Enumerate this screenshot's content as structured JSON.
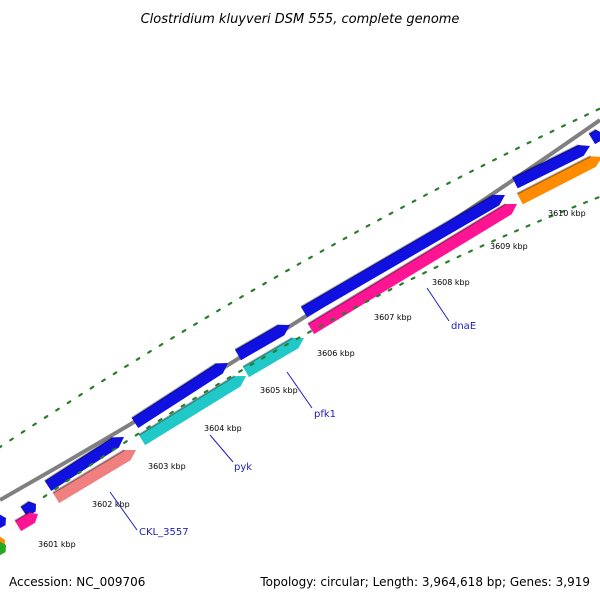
{
  "title": "Clostridium kluyveri DSM 555, complete genome",
  "accession": "Accession: NC_009706",
  "summary": "Topology: circular; Length: 3,964,618 bp; Genes: 3,919",
  "colors": {
    "backbone": "#808080",
    "cds_forward": "#1010e0",
    "magenta": "#ff1493",
    "cyan": "#20c8c8",
    "salmon": "#f08080",
    "orange": "#ff8c00",
    "green": "#22aa22",
    "tick": "#2a7d2a",
    "label_text": "#2020c0",
    "leader": "#2020c0"
  },
  "map": {
    "scale_ticks": [
      {
        "label": "3601 kbp"
      },
      {
        "label": "3602 kbp"
      },
      {
        "label": "3603 kbp"
      },
      {
        "label": "3604 kbp"
      },
      {
        "label": "3605 kbp"
      },
      {
        "label": "3606 kbp"
      },
      {
        "label": "3607 kbp"
      },
      {
        "label": "3608 kbp"
      },
      {
        "label": "3609 kbp"
      },
      {
        "label": "3610 kbp"
      }
    ],
    "gene_labels": [
      {
        "label": "CKL_3557"
      },
      {
        "label": "pyk"
      },
      {
        "label": "pfk1"
      },
      {
        "label": "dnaE"
      }
    ]
  }
}
